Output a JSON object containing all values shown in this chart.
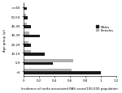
{
  "age_groups": [
    ">=60",
    "50-59",
    "40-49",
    "30-39",
    "20-29",
    "10-19",
    "5-9",
    "<5"
  ],
  "males": [
    0.05,
    0.06,
    0.1,
    0.22,
    0.1,
    0.28,
    0.38,
    1.0
  ],
  "females": [
    0.02,
    0.04,
    0.05,
    0.08,
    0.07,
    0.1,
    0.65,
    0.62
  ],
  "male_color": "#1a1a1a",
  "female_color": "#b0b0b0",
  "xlabel": "Incidence of turtle-associated RAS cases/100,000 population",
  "ylabel": "Age group (yr)",
  "xlim": [
    0,
    1.2
  ],
  "xticks": [
    0.0,
    0.2,
    0.4,
    0.6,
    0.8,
    1.0,
    1.2
  ],
  "xtick_labels": [
    "0",
    "0.2",
    "0.4",
    "0.6",
    "0.8",
    "1",
    "1.2"
  ],
  "legend_male": "Males",
  "legend_female": "Females",
  "label_fontsize": 2.8,
  "tick_fontsize": 2.8,
  "bar_height": 0.32,
  "background_color": "#ffffff"
}
